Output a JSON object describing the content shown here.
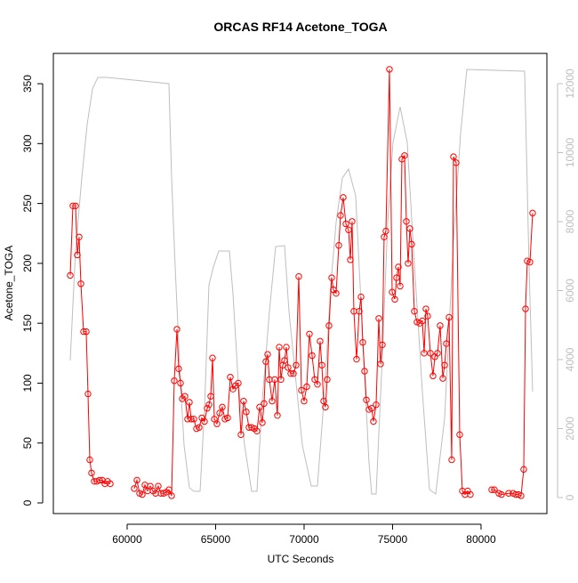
{
  "chart_data": {
    "type": "line",
    "title": "ORCAS RF14 Acetone_TOGA",
    "xlabel": "UTC Seconds",
    "ylabel": "Acetone_TOGA",
    "xlim": [
      55830,
      83720
    ],
    "ylim": [
      -8.9,
      375.3
    ],
    "y2lim": [
      -464,
      12877
    ],
    "xticks": [
      60000,
      65000,
      70000,
      75000,
      80000
    ],
    "yticks": [
      0,
      50,
      100,
      150,
      200,
      250,
      300,
      350
    ],
    "y2ticks": [
      0,
      2000,
      4000,
      6000,
      8000,
      10000,
      12000
    ],
    "y2color": "#bebebe",
    "series": [
      {
        "color": "#ff0000",
        "marker": "circle",
        "x": [
          56784,
          56935,
          57086,
          57186,
          57286,
          57387,
          57538,
          57688,
          57789,
          57889,
          57990,
          58141,
          58291,
          58442,
          58593,
          58744,
          58894,
          59045,
          null,
          60402,
          60553,
          60704,
          60854,
          61005,
          61156,
          61307,
          61457,
          61608,
          61759,
          61910,
          62060,
          62211,
          62362,
          62513,
          62663,
          62814,
          62915,
          63015,
          63116,
          63266,
          63417,
          63518,
          63618,
          63769,
          63920,
          64070,
          64221,
          64372,
          64523,
          64623,
          64724,
          64824,
          64925,
          65076,
          65226,
          65377,
          65528,
          65678,
          65829,
          65980,
          66131,
          66281,
          66432,
          66583,
          66733,
          66884,
          67035,
          67186,
          67336,
          67487,
          67638,
          67739,
          67839,
          67940,
          68040,
          68191,
          68342,
          68492,
          68593,
          68693,
          68794,
          68894,
          68995,
          69095,
          69246,
          69397,
          69548,
          69698,
          69849,
          70000,
          70151,
          70301,
          70452,
          70603,
          70754,
          70904,
          71005,
          71105,
          71206,
          71306,
          71407,
          71558,
          71658,
          71809,
          71960,
          72060,
          72211,
          72362,
          72512,
          72613,
          72713,
          72814,
          72965,
          73115,
          73216,
          73316,
          73417,
          73518,
          73668,
          73819,
          73919,
          74070,
          74221,
          74321,
          74422,
          74522,
          74623,
          74824,
          74975,
          75126,
          75226,
          75327,
          75427,
          75528,
          75678,
          75779,
          75879,
          75980,
          76080,
          76231,
          76382,
          76533,
          76683,
          76784,
          76884,
          76985,
          77136,
          77286,
          77387,
          77538,
          77688,
          77839,
          77940,
          78040,
          78191,
          78342,
          78442,
          78593,
          78794,
          78945,
          79095,
          79246,
          79397,
          null,
          80603,
          80754,
          81005,
          81156,
          81558,
          81809,
          81960,
          82111,
          82261,
          82412,
          82513,
          82613,
          82764,
          82915
        ],
        "values": [
          190,
          248,
          248,
          207,
          222,
          183,
          143,
          143,
          91,
          36,
          25,
          18,
          18,
          19,
          19,
          16,
          18,
          16,
          null,
          12,
          19,
          8,
          7,
          15,
          10,
          14,
          10,
          8,
          14,
          8,
          8,
          9,
          11,
          6,
          102,
          145,
          112,
          100,
          87,
          89,
          70,
          84,
          70,
          70,
          62,
          63,
          71,
          68,
          79,
          82,
          89,
          121,
          70,
          66,
          75,
          80,
          70,
          71,
          105,
          95,
          98,
          100,
          57,
          85,
          76,
          63,
          63,
          62,
          60,
          80,
          67,
          83,
          118,
          124,
          103,
          85,
          103,
          73,
          130,
          103,
          115,
          119,
          130,
          113,
          108,
          108,
          115,
          189,
          94,
          85,
          97,
          141,
          123,
          103,
          99,
          135,
          115,
          85,
          80,
          103,
          148,
          188,
          178,
          175,
          215,
          240,
          255,
          233,
          228,
          203,
          235,
          160,
          120,
          160,
          172,
          134,
          110,
          86,
          78,
          79,
          68,
          82,
          154,
          116,
          132,
          222,
          227,
          362,
          176,
          170,
          188,
          197,
          181,
          287,
          290,
          235,
          200,
          229,
          216,
          160,
          151,
          150,
          152,
          125,
          162,
          156,
          125,
          106,
          122,
          125,
          148,
          104,
          115,
          133,
          155,
          36,
          289,
          284,
          57,
          10,
          7,
          10,
          7,
          null,
          11,
          11,
          8,
          7,
          8,
          8,
          7,
          7,
          6,
          28,
          162,
          202,
          201,
          242
        ]
      },
      {
        "color": "#bebebe",
        "axis": "y2",
        "x": [
          56784,
          57086,
          57437,
          57739,
          58040,
          58342,
          58844,
          62362,
          62513,
          62714,
          63015,
          63216,
          63518,
          63769,
          64121,
          64372,
          64623,
          64874,
          65176,
          65779,
          65980,
          66281,
          66633,
          67035,
          67337,
          67638,
          68040,
          68392,
          68894,
          69146,
          69899,
          70402,
          70754,
          71156,
          71507,
          71809,
          72161,
          72512,
          72914,
          73316,
          73668,
          73819,
          74070,
          74422,
          74724,
          75025,
          75427,
          75829,
          76181,
          76683,
          77085,
          77437,
          77940,
          78442,
          78844,
          79196,
          82462,
          82714,
          82915
        ],
        "values": [
          3974,
          7200,
          9265,
          10813,
          11845,
          12181,
          12181,
          12000,
          9265,
          6684,
          3329,
          1523,
          284,
          181,
          181,
          2555,
          6168,
          6684,
          7148,
          7148,
          5910,
          3329,
          1523,
          181,
          181,
          2813,
          5394,
          7277,
          7303,
          5394,
          1523,
          335,
          335,
          3071,
          6168,
          7974,
          9265,
          9523,
          8748,
          4619,
          1006,
          103,
          103,
          4103,
          7974,
          10297,
          11329,
          10297,
          7200,
          3071,
          232,
          103,
          2297,
          7458,
          10555,
          12413,
          12361,
          6684,
          3071
        ]
      }
    ]
  }
}
